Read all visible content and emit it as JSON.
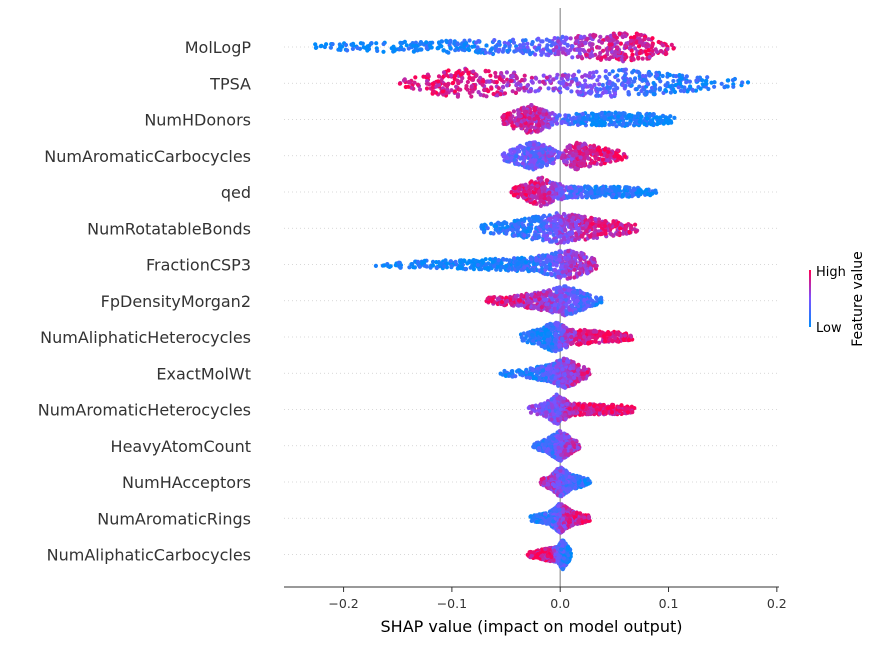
{
  "chart_data": {
    "type": "scatter",
    "subtype": "shap-beeswarm",
    "xlabel": "SHAP value (impact on model output)",
    "xlim": [
      -0.255,
      0.202
    ],
    "xticks": [
      -0.2,
      -0.1,
      0.0,
      0.1,
      0.2
    ],
    "xtick_labels": [
      "−0.2",
      "−0.1",
      "0.0",
      "0.1",
      "0.2"
    ],
    "zero_line": true,
    "grid": false,
    "colorbar": {
      "title": "Feature value",
      "high_label": "High",
      "low_label": "Low",
      "high_color": "#ff0052",
      "low_color": "#008bfb",
      "placement": "right"
    },
    "features": [
      {
        "name": "MolLogP",
        "range": [
          -0.235,
          0.108
        ],
        "density": [
          [
            -0.23,
            0.07
          ],
          [
            -0.17,
            0.2
          ],
          [
            -0.1,
            0.3
          ],
          [
            -0.03,
            0.4
          ],
          [
            0.03,
            0.75
          ],
          [
            0.065,
            1.0
          ],
          [
            0.09,
            0.55
          ],
          [
            0.108,
            0.08
          ]
        ],
        "color": [
          [
            -0.235,
            0.0
          ],
          [
            -0.1,
            0.08
          ],
          [
            -0.02,
            0.35
          ],
          [
            0.03,
            0.75
          ],
          [
            0.108,
            0.92
          ]
        ]
      },
      {
        "name": "TPSA",
        "range": [
          -0.148,
          0.18
        ],
        "density": [
          [
            -0.148,
            0.1
          ],
          [
            -0.12,
            0.6
          ],
          [
            -0.09,
            1.0
          ],
          [
            -0.05,
            0.7
          ],
          [
            -0.01,
            0.4
          ],
          [
            0.02,
            0.75
          ],
          [
            0.06,
            0.9
          ],
          [
            0.1,
            0.55
          ],
          [
            0.14,
            0.3
          ],
          [
            0.18,
            0.05
          ]
        ],
        "color": [
          [
            -0.148,
            0.92
          ],
          [
            -0.08,
            0.85
          ],
          [
            -0.01,
            0.6
          ],
          [
            0.03,
            0.4
          ],
          [
            0.1,
            0.15
          ],
          [
            0.18,
            0.02
          ]
        ]
      },
      {
        "name": "NumHDonors",
        "range": [
          -0.055,
          0.108
        ],
        "density": [
          [
            -0.055,
            0.1
          ],
          [
            -0.04,
            0.6
          ],
          [
            -0.025,
            1.0
          ],
          [
            -0.012,
            0.5
          ],
          [
            0.0,
            0.15
          ],
          [
            0.02,
            0.3
          ],
          [
            0.05,
            0.35
          ],
          [
            0.09,
            0.25
          ],
          [
            0.108,
            0.05
          ]
        ],
        "color": [
          [
            -0.055,
            0.85
          ],
          [
            -0.02,
            0.75
          ],
          [
            0.0,
            0.4
          ],
          [
            0.03,
            0.06
          ],
          [
            0.108,
            0.03
          ]
        ]
      },
      {
        "name": "NumAromaticCarbocycles",
        "range": [
          -0.055,
          0.062
        ],
        "density": [
          [
            -0.055,
            0.1
          ],
          [
            -0.04,
            0.5
          ],
          [
            -0.025,
            0.9
          ],
          [
            -0.01,
            0.5
          ],
          [
            0.0,
            0.2
          ],
          [
            0.015,
            0.9
          ],
          [
            0.03,
            0.6
          ],
          [
            0.05,
            0.3
          ],
          [
            0.062,
            0.05
          ]
        ],
        "color": [
          [
            -0.055,
            0.35
          ],
          [
            -0.02,
            0.4
          ],
          [
            0.0,
            0.55
          ],
          [
            0.015,
            0.8
          ],
          [
            0.062,
            0.9
          ]
        ]
      },
      {
        "name": "qed",
        "range": [
          -0.045,
          0.09
        ],
        "density": [
          [
            -0.045,
            0.1
          ],
          [
            -0.03,
            0.5
          ],
          [
            -0.018,
            1.0
          ],
          [
            -0.005,
            0.5
          ],
          [
            0.01,
            0.25
          ],
          [
            0.04,
            0.25
          ],
          [
            0.07,
            0.2
          ],
          [
            0.09,
            0.05
          ]
        ],
        "color": [
          [
            -0.045,
            0.9
          ],
          [
            -0.015,
            0.75
          ],
          [
            0.0,
            0.45
          ],
          [
            0.03,
            0.12
          ],
          [
            0.09,
            0.05
          ]
        ]
      },
      {
        "name": "NumRotatableBonds",
        "range": [
          -0.075,
          0.075
        ],
        "density": [
          [
            -0.075,
            0.1
          ],
          [
            -0.05,
            0.35
          ],
          [
            -0.02,
            0.75
          ],
          [
            -0.005,
            1.0
          ],
          [
            0.01,
            0.9
          ],
          [
            0.03,
            0.6
          ],
          [
            0.055,
            0.35
          ],
          [
            0.075,
            0.05
          ]
        ],
        "color": [
          [
            -0.075,
            0.08
          ],
          [
            -0.03,
            0.18
          ],
          [
            0.0,
            0.5
          ],
          [
            0.03,
            0.78
          ],
          [
            0.075,
            0.9
          ]
        ]
      },
      {
        "name": "FractionCSP3",
        "range": [
          -0.175,
          0.036
        ],
        "density": [
          [
            -0.175,
            0.05
          ],
          [
            -0.14,
            0.12
          ],
          [
            -0.08,
            0.2
          ],
          [
            -0.03,
            0.35
          ],
          [
            -0.01,
            0.6
          ],
          [
            0.005,
            1.0
          ],
          [
            0.02,
            0.7
          ],
          [
            0.036,
            0.05
          ]
        ],
        "color": [
          [
            -0.175,
            0.0
          ],
          [
            -0.06,
            0.05
          ],
          [
            -0.01,
            0.3
          ],
          [
            0.01,
            0.65
          ],
          [
            0.036,
            0.7
          ]
        ]
      },
      {
        "name": "FpDensityMorgan2",
        "range": [
          -0.068,
          0.042
        ],
        "density": [
          [
            -0.068,
            0.1
          ],
          [
            -0.04,
            0.25
          ],
          [
            -0.015,
            0.55
          ],
          [
            0.005,
            1.0
          ],
          [
            0.018,
            0.6
          ],
          [
            0.03,
            0.2
          ],
          [
            0.042,
            0.05
          ]
        ],
        "color": [
          [
            -0.068,
            0.92
          ],
          [
            -0.02,
            0.7
          ],
          [
            0.0,
            0.45
          ],
          [
            0.02,
            0.3
          ],
          [
            0.042,
            0.1
          ]
        ]
      },
      {
        "name": "NumAliphaticHeterocycles",
        "range": [
          -0.038,
          0.068
        ],
        "density": [
          [
            -0.038,
            0.05
          ],
          [
            -0.02,
            0.45
          ],
          [
            -0.005,
            1.0
          ],
          [
            0.01,
            0.45
          ],
          [
            0.03,
            0.3
          ],
          [
            0.05,
            0.25
          ],
          [
            0.068,
            0.05
          ]
        ],
        "color": [
          [
            -0.038,
            0.05
          ],
          [
            -0.01,
            0.12
          ],
          [
            0.0,
            0.45
          ],
          [
            0.02,
            0.88
          ],
          [
            0.068,
            0.93
          ]
        ]
      },
      {
        "name": "ExactMolWt",
        "range": [
          -0.055,
          0.028
        ],
        "density": [
          [
            -0.055,
            0.05
          ],
          [
            -0.03,
            0.2
          ],
          [
            -0.01,
            0.45
          ],
          [
            0.003,
            1.0
          ],
          [
            0.015,
            0.6
          ],
          [
            0.028,
            0.05
          ]
        ],
        "color": [
          [
            -0.055,
            0.05
          ],
          [
            -0.02,
            0.15
          ],
          [
            0.0,
            0.5
          ],
          [
            0.015,
            0.75
          ],
          [
            0.028,
            0.82
          ]
        ]
      },
      {
        "name": "NumAromaticHeterocycles",
        "range": [
          -0.03,
          0.07
        ],
        "density": [
          [
            -0.03,
            0.05
          ],
          [
            -0.015,
            0.3
          ],
          [
            -0.003,
            1.0
          ],
          [
            0.01,
            0.3
          ],
          [
            0.03,
            0.22
          ],
          [
            0.055,
            0.2
          ],
          [
            0.07,
            0.05
          ]
        ],
        "color": [
          [
            -0.03,
            0.55
          ],
          [
            -0.005,
            0.45
          ],
          [
            0.01,
            0.82
          ],
          [
            0.07,
            0.93
          ]
        ]
      },
      {
        "name": "HeavyAtomCount",
        "range": [
          -0.025,
          0.018
        ],
        "density": [
          [
            -0.025,
            0.05
          ],
          [
            -0.012,
            0.35
          ],
          [
            0.0,
            1.0
          ],
          [
            0.008,
            0.55
          ],
          [
            0.018,
            0.05
          ]
        ],
        "color": [
          [
            -0.025,
            0.1
          ],
          [
            -0.005,
            0.35
          ],
          [
            0.005,
            0.6
          ],
          [
            0.018,
            0.75
          ]
        ]
      },
      {
        "name": "NumHAcceptors",
        "range": [
          -0.018,
          0.028
        ],
        "density": [
          [
            -0.018,
            0.05
          ],
          [
            -0.008,
            0.4
          ],
          [
            0.0,
            1.0
          ],
          [
            0.01,
            0.4
          ],
          [
            0.028,
            0.05
          ]
        ],
        "color": [
          [
            -0.018,
            0.75
          ],
          [
            -0.005,
            0.6
          ],
          [
            0.005,
            0.35
          ],
          [
            0.028,
            0.05
          ]
        ]
      },
      {
        "name": "NumAromaticRings",
        "range": [
          -0.028,
          0.028
        ],
        "density": [
          [
            -0.028,
            0.05
          ],
          [
            -0.01,
            0.3
          ],
          [
            0.0,
            1.0
          ],
          [
            0.01,
            0.4
          ],
          [
            0.028,
            0.05
          ]
        ],
        "color": [
          [
            -0.028,
            0.05
          ],
          [
            -0.005,
            0.3
          ],
          [
            0.005,
            0.75
          ],
          [
            0.028,
            0.9
          ]
        ]
      },
      {
        "name": "NumAliphaticCarbocycles",
        "range": [
          -0.03,
          0.01
        ],
        "density": [
          [
            -0.03,
            0.05
          ],
          [
            -0.015,
            0.25
          ],
          [
            -0.002,
            0.4
          ],
          [
            0.002,
            1.0
          ],
          [
            0.01,
            0.1
          ]
        ],
        "color": [
          [
            -0.03,
            0.93
          ],
          [
            -0.01,
            0.85
          ],
          [
            0.0,
            0.3
          ],
          [
            0.01,
            0.05
          ]
        ]
      }
    ]
  }
}
